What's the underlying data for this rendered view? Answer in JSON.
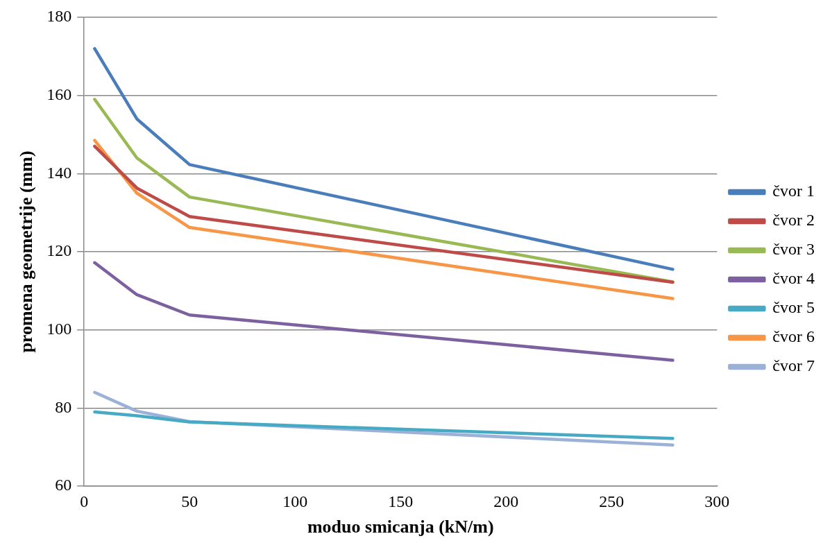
{
  "chart_data": {
    "type": "line",
    "xlabel": "moduo smicanja (kN/m)",
    "ylabel": "promena geometrije (mm)",
    "x": [
      5,
      25,
      50,
      279
    ],
    "xlim": [
      0,
      300
    ],
    "xticks": [
      0,
      50,
      100,
      150,
      200,
      250,
      300
    ],
    "ylim": [
      60,
      180
    ],
    "yticks": [
      60,
      80,
      100,
      120,
      140,
      160,
      180
    ],
    "grid": "y",
    "legend": "right",
    "marker": "none",
    "series": [
      {
        "name": "čvor 1",
        "color": "#4a7ebb",
        "values": [
          172,
          154,
          142.3,
          115.5
        ]
      },
      {
        "name": "čvor 2",
        "color": "#be4b48",
        "values": [
          147,
          136.3,
          129,
          112.2
        ]
      },
      {
        "name": "čvor 3",
        "color": "#98b954",
        "values": [
          159,
          144,
          134,
          112.3
        ]
      },
      {
        "name": "čvor 4",
        "color": "#7d60a0",
        "values": [
          117.2,
          109,
          103.8,
          92.2
        ]
      },
      {
        "name": "čvor 5",
        "color": "#46aac5",
        "values": [
          79,
          78,
          76.4,
          72.2
        ]
      },
      {
        "name": "čvor 6",
        "color": "#f79646",
        "values": [
          148.5,
          135,
          126.2,
          108
        ]
      },
      {
        "name": "čvor 7",
        "color": "#9bb1d8",
        "values": [
          84,
          79.2,
          76.5,
          70.5
        ]
      }
    ]
  }
}
